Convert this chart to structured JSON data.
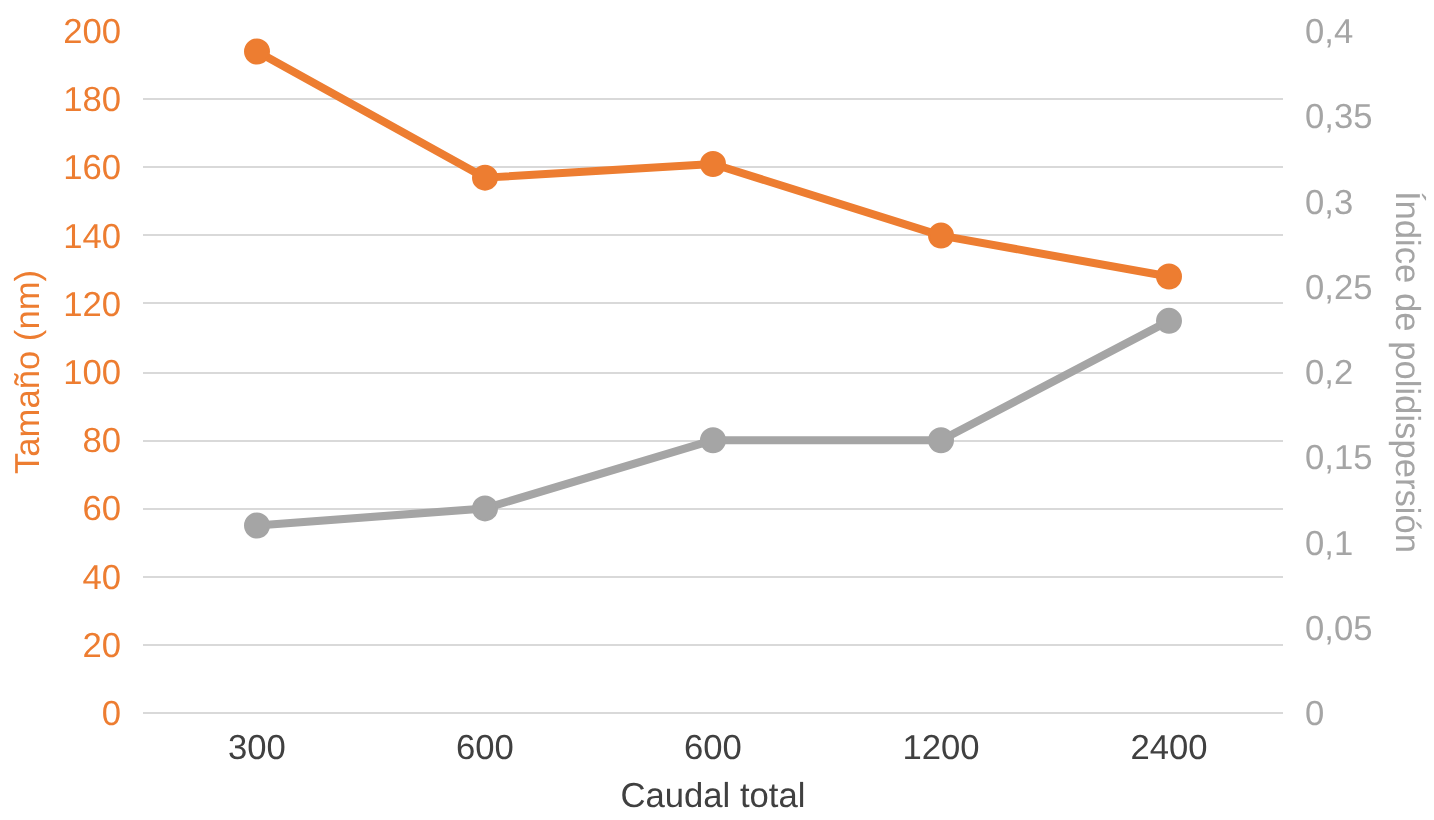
{
  "chart_data": {
    "type": "line",
    "xlabel": "Caudal total",
    "ylabel": "Tamaño (nm)",
    "y2label": "Índice de polidispersión",
    "categories": [
      "300",
      "600",
      "600",
      "1200",
      "2400"
    ],
    "series": [
      {
        "color": "#ed7d31",
        "values": [
          194,
          157,
          161,
          140,
          128
        ]
      },
      {
        "color": "#a5a5a5",
        "values": [
          0.11,
          0.12,
          0.16,
          0.16,
          0.23
        ],
        "axis": "y2"
      }
    ],
    "ylim": [
      0,
      200
    ],
    "yticks": [
      0,
      20,
      40,
      60,
      80,
      100,
      120,
      140,
      160,
      180,
      200
    ],
    "y2lim": [
      0,
      0.4
    ],
    "y2ticks": [
      0,
      {
        "value": 0.05,
        "label": "0,05"
      },
      {
        "value": 0.1,
        "label": "0,1"
      },
      {
        "value": 0.15,
        "label": "0,15"
      },
      {
        "value": 0.2,
        "label": "0,2"
      },
      {
        "value": 0.25,
        "label": "0,25"
      },
      {
        "value": 0.3,
        "label": "0,3"
      },
      {
        "value": 0.35,
        "label": "0,35"
      },
      {
        "value": 0.4,
        "label": "0,4"
      }
    ],
    "grid": "y",
    "marker": "circle",
    "line_style": "solid"
  }
}
